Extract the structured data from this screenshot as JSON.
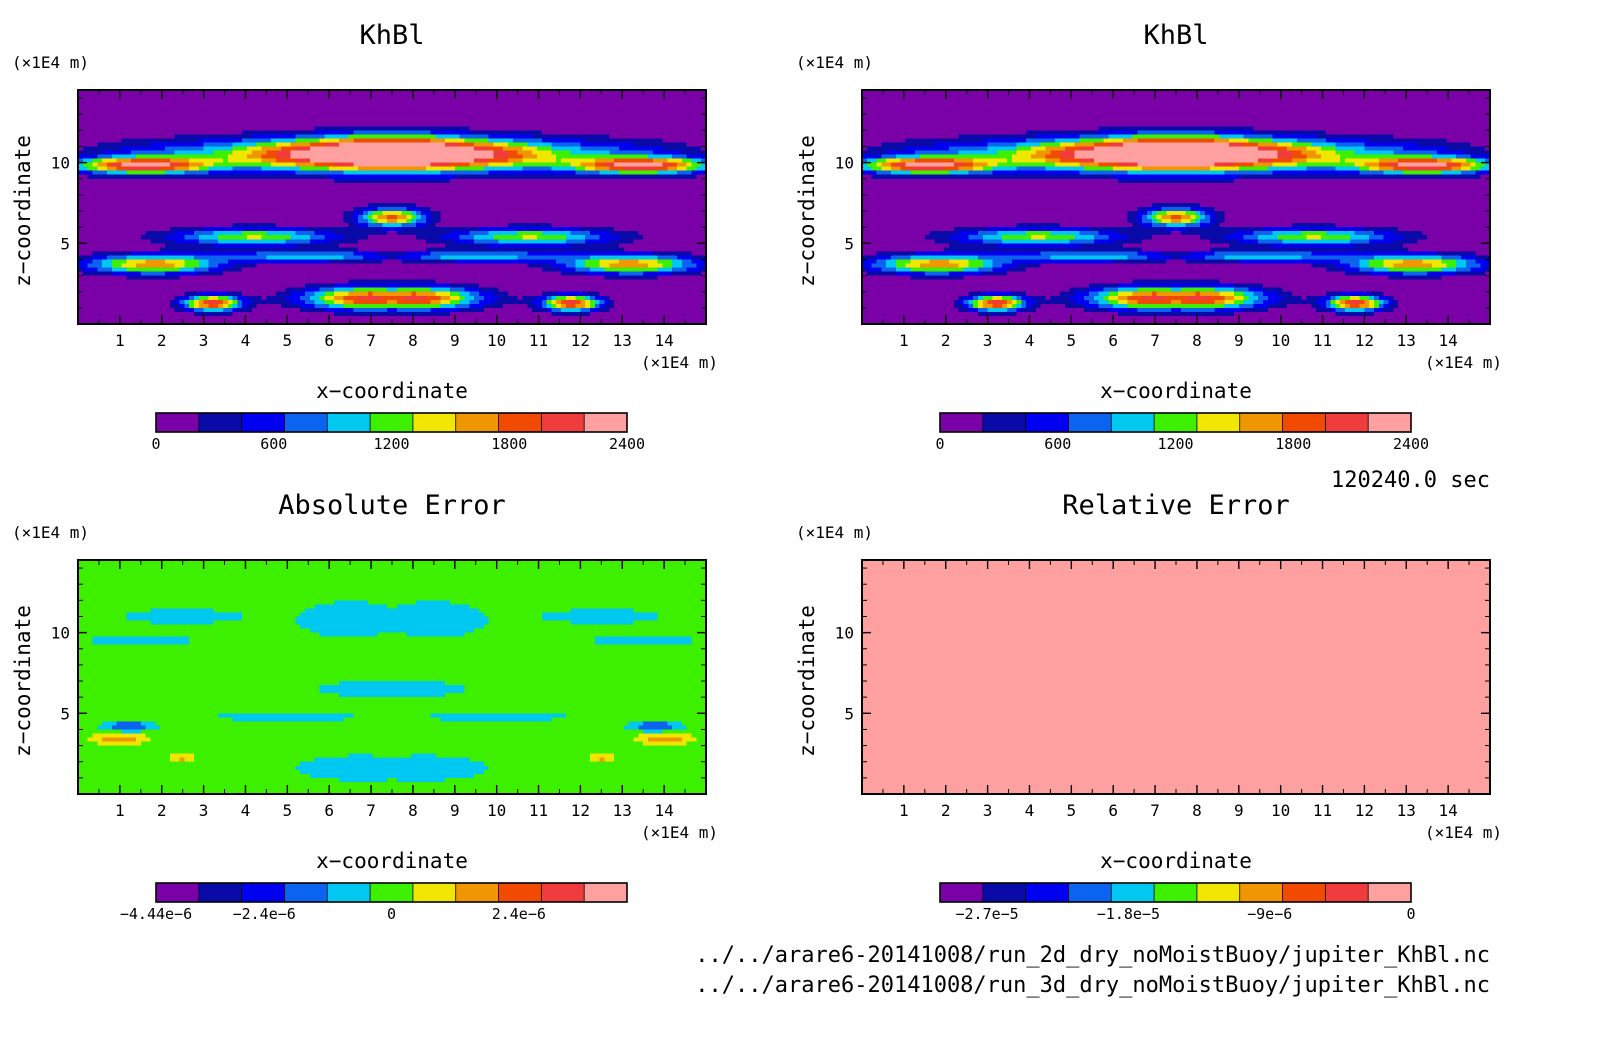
{
  "figure": {
    "time_label": "120240.0 sec",
    "files": [
      "../../arare6-20141008/run_2d_dry_noMoistBuoy/jupiter_KhBl.nc",
      "../../arare6-20141008/run_3d_dry_noMoistBuoy/jupiter_KhBl.nc"
    ]
  },
  "chart_data": [
    {
      "type": "heatmap",
      "title": "KhBl",
      "xlabel": "x−coordinate",
      "ylabel": "z−coordinate",
      "x_unit": "(×1E4 m)",
      "y_unit": "(×1E4 m)",
      "xlim": [
        0,
        15
      ],
      "ylim": [
        0,
        14.5
      ],
      "x_ticks": [
        "1",
        "2",
        "3",
        "4",
        "5",
        "6",
        "7",
        "8",
        "9",
        "10",
        "11",
        "12",
        "13",
        "14"
      ],
      "y_ticks": [
        "5",
        "10"
      ],
      "colorbar": {
        "colors": [
          "#7a00a8",
          "#0a0aa8",
          "#0000f0",
          "#0a64f0",
          "#00c8f0",
          "#3cf000",
          "#f0e600",
          "#f09600",
          "#f04b00",
          "#f03c3c",
          "#ffa0a0"
        ],
        "min": 0,
        "max": 2400,
        "labels": [
          "0",
          "600",
          "1200",
          "1800",
          "2400"
        ]
      },
      "field": "khbl"
    },
    {
      "type": "heatmap",
      "title": "KhBl",
      "xlabel": "x−coordinate",
      "ylabel": "z−coordinate",
      "x_unit": "(×1E4 m)",
      "y_unit": "(×1E4 m)",
      "xlim": [
        0,
        15
      ],
      "ylim": [
        0,
        14.5
      ],
      "x_ticks": [
        "1",
        "2",
        "3",
        "4",
        "5",
        "6",
        "7",
        "8",
        "9",
        "10",
        "11",
        "12",
        "13",
        "14"
      ],
      "y_ticks": [
        "5",
        "10"
      ],
      "colorbar": {
        "colors": [
          "#7a00a8",
          "#0a0aa8",
          "#0000f0",
          "#0a64f0",
          "#00c8f0",
          "#3cf000",
          "#f0e600",
          "#f09600",
          "#f04b00",
          "#f03c3c",
          "#ffa0a0"
        ],
        "min": 0,
        "max": 2400,
        "labels": [
          "0",
          "600",
          "1200",
          "1800",
          "2400"
        ]
      },
      "field": "khbl"
    },
    {
      "type": "heatmap",
      "title": "Absolute Error",
      "xlabel": "x−coordinate",
      "ylabel": "z−coordinate",
      "x_unit": "(×1E4 m)",
      "y_unit": "(×1E4 m)",
      "xlim": [
        0,
        15
      ],
      "ylim": [
        0,
        14.5
      ],
      "x_ticks": [
        "1",
        "2",
        "3",
        "4",
        "5",
        "6",
        "7",
        "8",
        "9",
        "10",
        "11",
        "12",
        "13",
        "14"
      ],
      "y_ticks": [
        "5",
        "10"
      ],
      "colorbar": {
        "colors": [
          "#7a00a8",
          "#0a0aa8",
          "#0000f0",
          "#0a64f0",
          "#00c8f0",
          "#3cf000",
          "#f0e600",
          "#f09600",
          "#f04b00",
          "#f03c3c",
          "#ffa0a0"
        ],
        "min": -4.44e-06,
        "max": 4.44e-06,
        "labels": [
          "−4.44e−6",
          "−2.4e−6",
          "0",
          "2.4e−6"
        ]
      },
      "field": "abserr"
    },
    {
      "type": "heatmap",
      "title": "Relative Error",
      "xlabel": "x−coordinate",
      "ylabel": "z−coordinate",
      "x_unit": "(×1E4 m)",
      "y_unit": "(×1E4 m)",
      "xlim": [
        0,
        15
      ],
      "ylim": [
        0,
        14.5
      ],
      "x_ticks": [
        "1",
        "2",
        "3",
        "4",
        "5",
        "6",
        "7",
        "8",
        "9",
        "10",
        "11",
        "12",
        "13",
        "14"
      ],
      "y_ticks": [
        "5",
        "10"
      ],
      "colorbar": {
        "colors": [
          "#7a00a8",
          "#0a0aa8",
          "#0000f0",
          "#0a64f0",
          "#00c8f0",
          "#3cf000",
          "#f0e600",
          "#f09600",
          "#f04b00",
          "#f03c3c",
          "#ffa0a0"
        ],
        "min": -3e-05,
        "max": 0,
        "labels": [
          "−2.7e−5",
          "−1.8e−5",
          "−9e−6",
          "0"
        ]
      },
      "field": "relerr"
    }
  ]
}
